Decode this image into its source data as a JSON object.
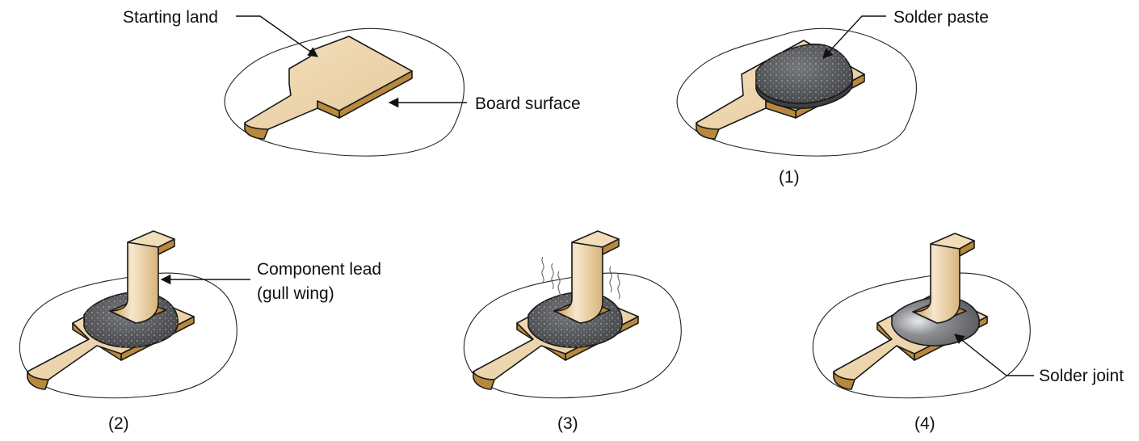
{
  "labels": {
    "starting_land": "Starting land",
    "board_surface": "Board surface",
    "solder_paste": "Solder paste",
    "component_lead_line1": "Component lead",
    "component_lead_line2": "(gull wing)",
    "solder_joint": "Solder joint"
  },
  "steps": {
    "one": "(1)",
    "two": "(2)",
    "three": "(3)",
    "four": "(4)"
  },
  "colors": {
    "copper": "#ecd3ab",
    "copper_side": "#b8893d",
    "paste": "#5b5d60",
    "solder_joint": "#7a7c80",
    "line": "#1a1a1a"
  }
}
